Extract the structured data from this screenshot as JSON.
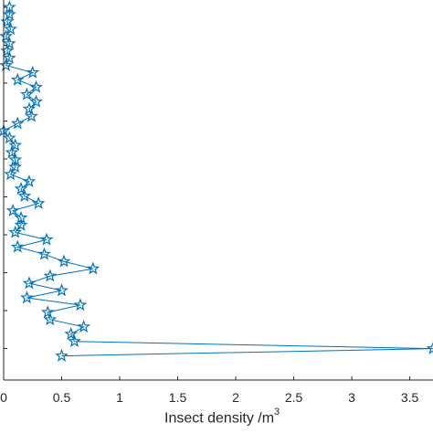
{
  "chart_data": {
    "type": "line",
    "orientation": "horizontal-value",
    "xlabel": "Insect density /m",
    "xlabel_superscript": "3",
    "xlim": [
      0,
      3.7
    ],
    "x_ticks": [
      "0",
      "0.5",
      "1",
      "1.5",
      "2",
      "2.5",
      "3",
      "3.5"
    ],
    "marker": "pentagram",
    "line_color": "#0072bd",
    "grid": false,
    "series": [
      {
        "values": [
          0.05,
          0.05,
          0.03,
          0.06,
          0.02,
          0.05,
          0.03,
          0.05,
          0.02,
          0.25,
          0.12,
          0.28,
          0.2,
          0.28,
          0.22,
          0.24,
          0.12,
          0.0,
          0.05,
          0.1,
          0.07,
          0.1,
          0.1,
          0.06,
          0.22,
          0.15,
          0.18,
          0.3,
          0.08,
          0.15,
          0.15,
          0.1,
          0.37,
          0.12,
          0.35,
          0.52,
          0.77,
          0.4,
          0.22,
          0.5,
          0.2,
          0.66,
          0.38,
          0.4,
          0.69,
          0.58,
          0.61,
          3.7,
          0.5
        ]
      }
    ]
  }
}
